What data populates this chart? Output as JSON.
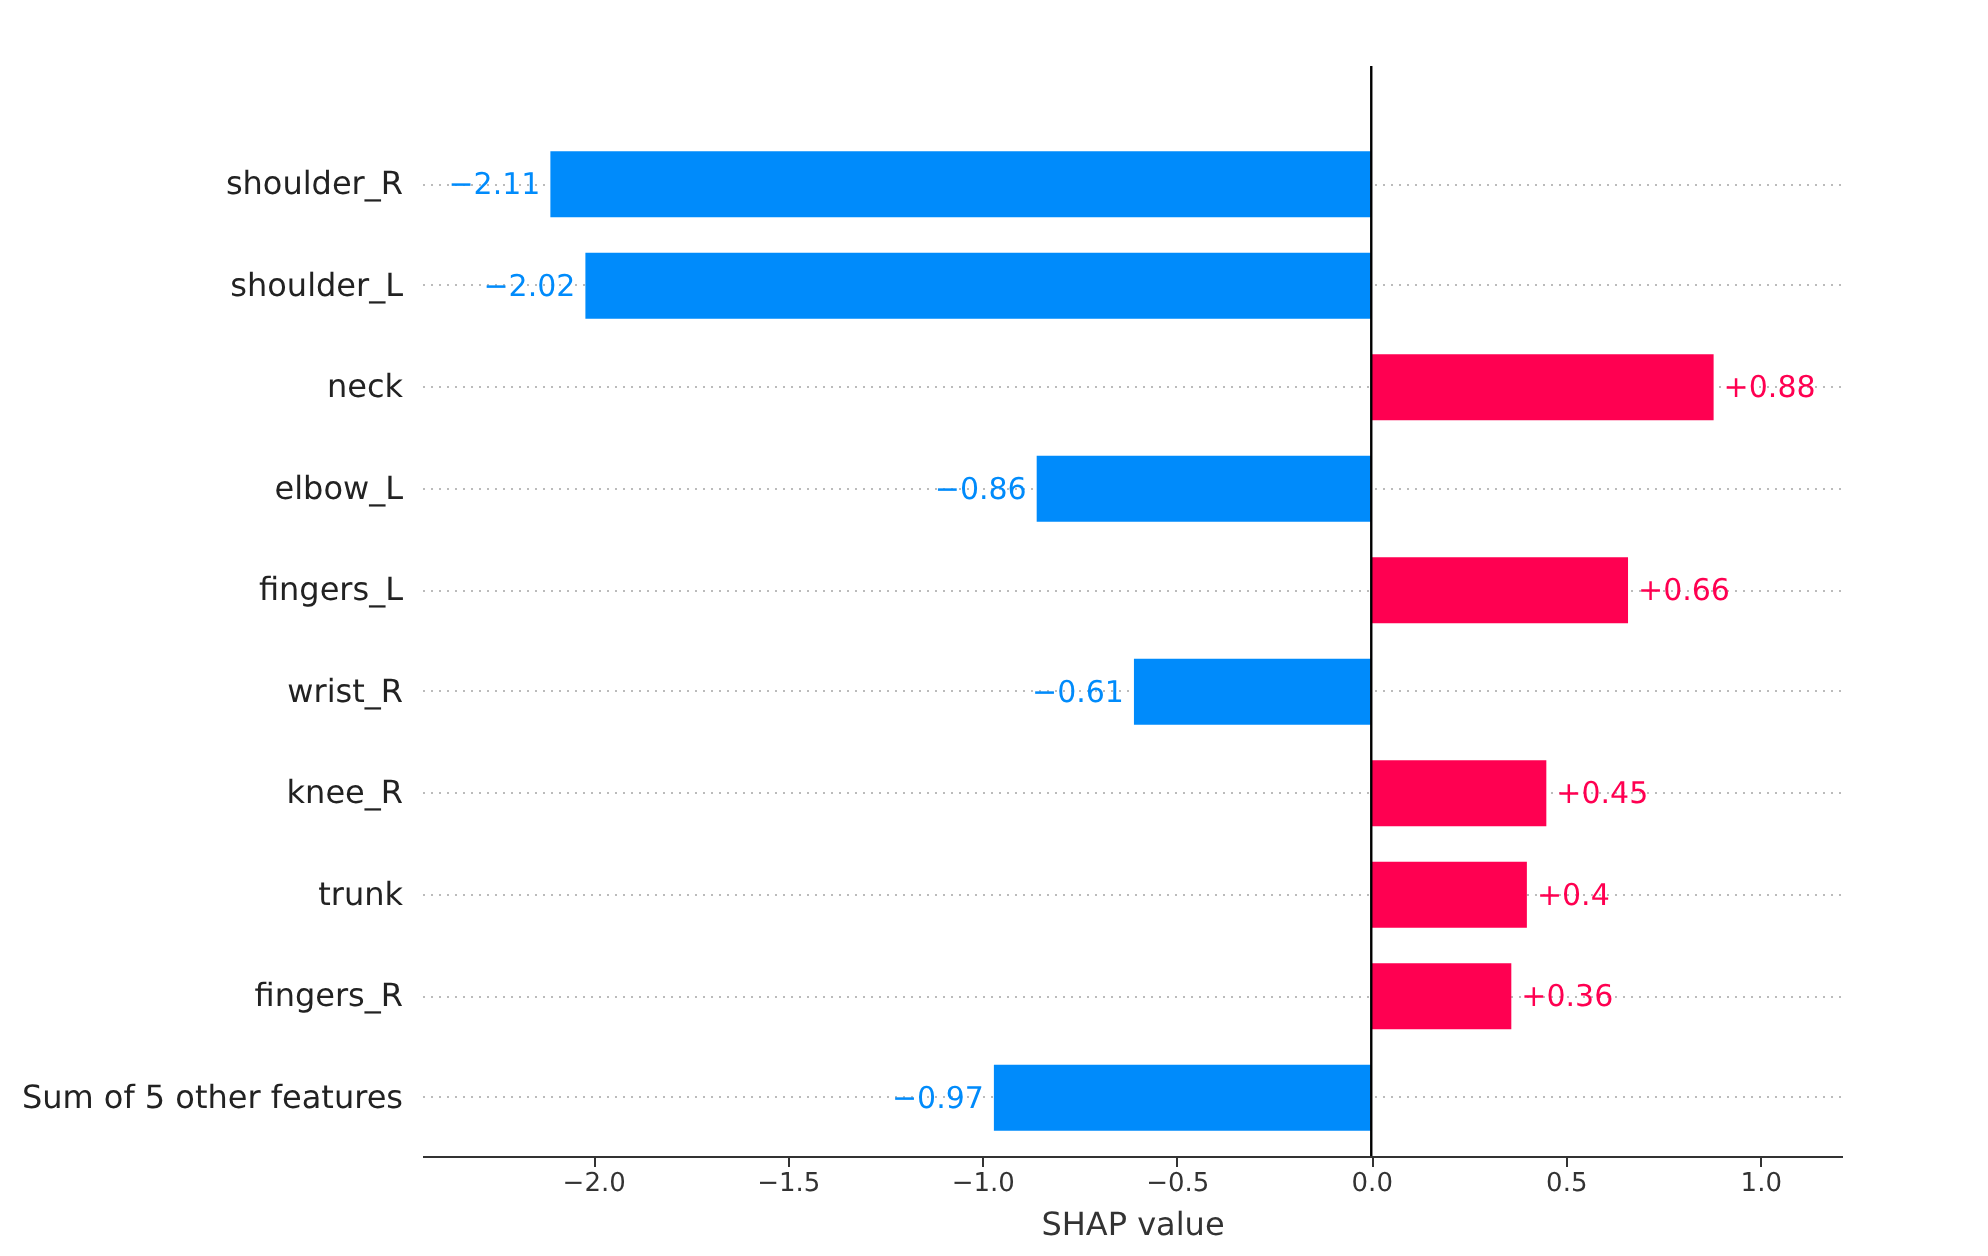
{
  "chart_data": {
    "type": "bar",
    "orientation": "horizontal",
    "xlabel": "SHAP value",
    "categories": [
      "shoulder_R",
      "shoulder_L",
      "neck",
      "elbow_L",
      "fingers_L",
      "wrist_R",
      "knee_R",
      "trunk",
      "fingers_R",
      "Sum of 5 other features"
    ],
    "values": [
      -2.11,
      -2.02,
      0.88,
      -0.86,
      0.66,
      -0.61,
      0.45,
      0.4,
      0.36,
      -0.97
    ],
    "value_labels": [
      "−2.11",
      "−2.02",
      "+0.88",
      "−0.86",
      "+0.66",
      "−0.61",
      "+0.45",
      "+0.4",
      "+0.36",
      "−0.97"
    ],
    "colors": [
      "#008bfb",
      "#008bfb",
      "#ff0051",
      "#008bfb",
      "#ff0051",
      "#008bfb",
      "#ff0051",
      "#ff0051",
      "#ff0051",
      "#008bfb"
    ],
    "xlim": [
      -2.44,
      1.21
    ],
    "xticks": [
      {
        "value": -2.0,
        "label": "−2.0"
      },
      {
        "value": -1.5,
        "label": "−1.5"
      },
      {
        "value": -1.0,
        "label": "−1.0"
      },
      {
        "value": -0.5,
        "label": "−0.5"
      },
      {
        "value": 0.0,
        "label": "0.0"
      },
      {
        "value": 0.5,
        "label": "0.5"
      },
      {
        "value": 1.0,
        "label": "1.0"
      }
    ],
    "ref_lines": [
      {
        "axis": "x",
        "value": 0,
        "color": "#000000"
      }
    ],
    "grid": "y"
  }
}
